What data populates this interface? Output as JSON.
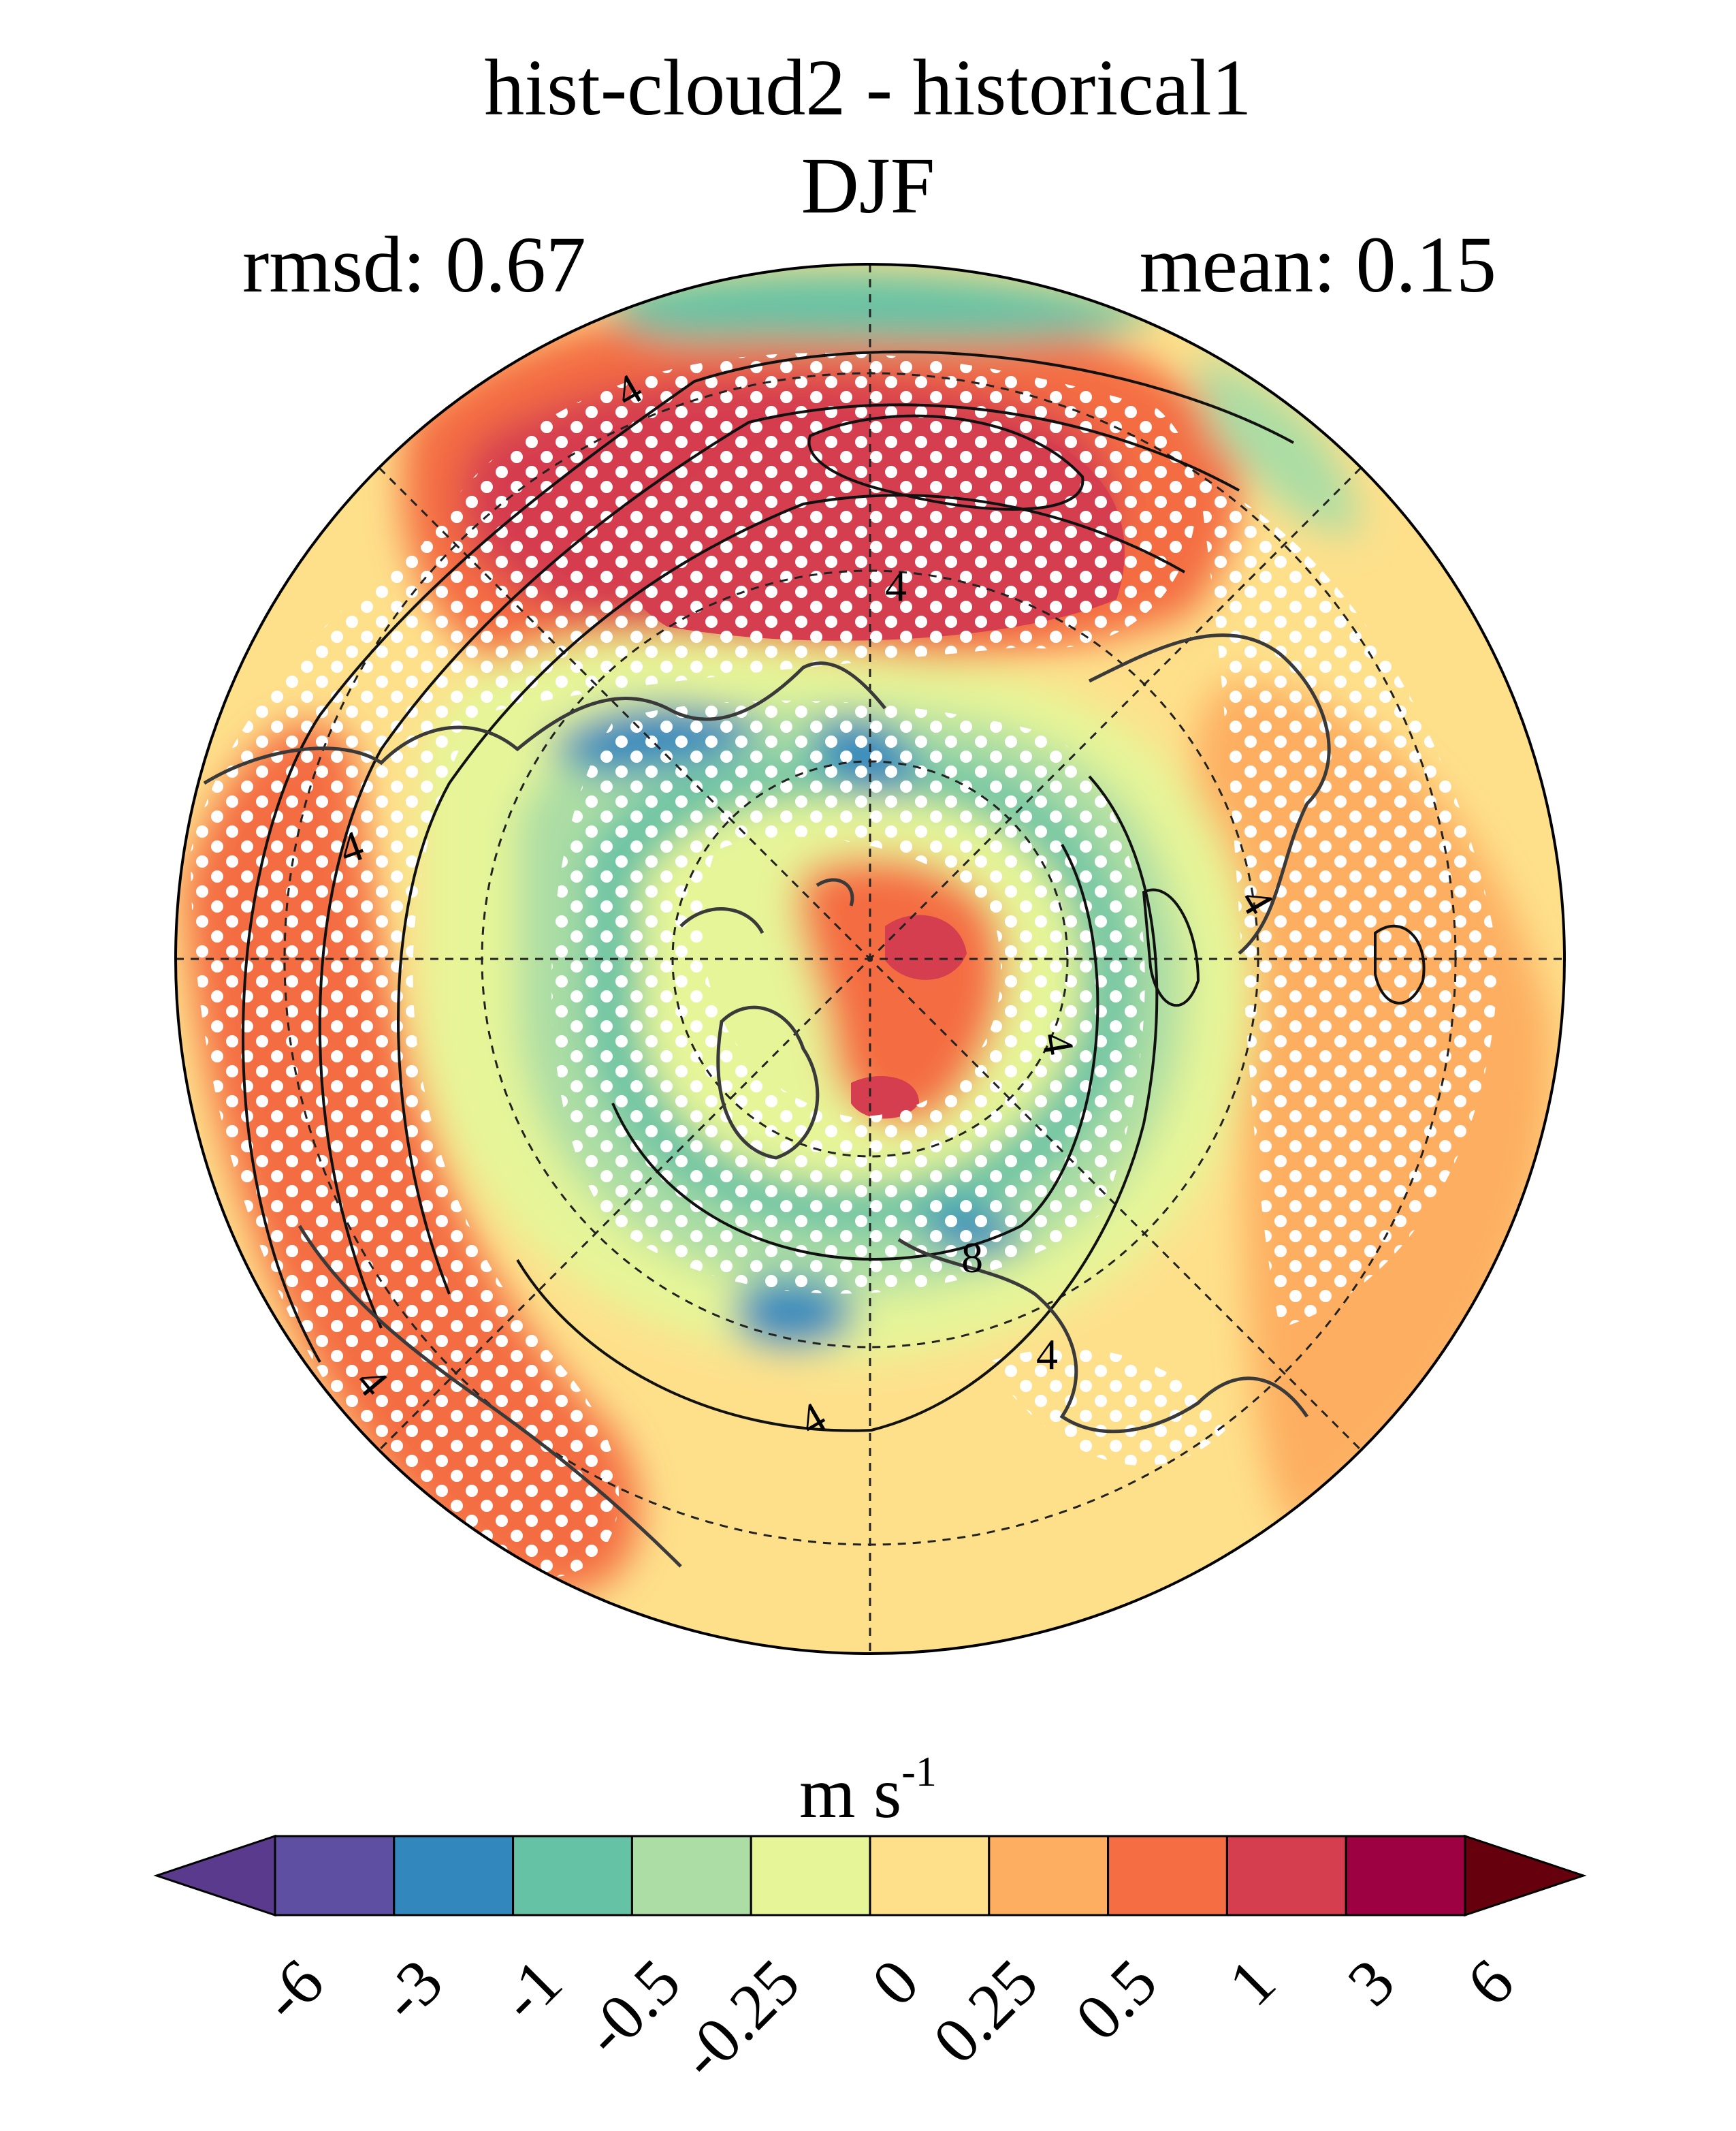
{
  "title": "hist-cloud2 - historical1",
  "subtitle": "DJF",
  "stats": {
    "rmsd": "rmsd: 0.67",
    "mean": "mean: 0.15"
  },
  "units": {
    "base": "m s",
    "exponent": "-1"
  },
  "contour_labels": [
    "4",
    "4",
    "4",
    "4",
    "4",
    "8",
    "4",
    "4",
    "4"
  ],
  "colorbar": {
    "ticks": [
      "-6",
      "-3",
      "-1",
      "-0.5",
      "-0.25",
      "0",
      "0.25",
      "0.5",
      "1",
      "3",
      "6"
    ],
    "colors": [
      "#5e4fa2",
      "#3288bd",
      "#66c2a5",
      "#abdda4",
      "#e6f598",
      "#fee08b",
      "#fdae61",
      "#f46d43",
      "#d53e4f",
      "#9e0142"
    ],
    "under_color": "#5a3a8c",
    "over_color": "#67000d"
  },
  "palette": {
    "ocean_land_outline": "#3a3a3a",
    "contour": "#111111",
    "stipple": "#ffffff"
  }
}
